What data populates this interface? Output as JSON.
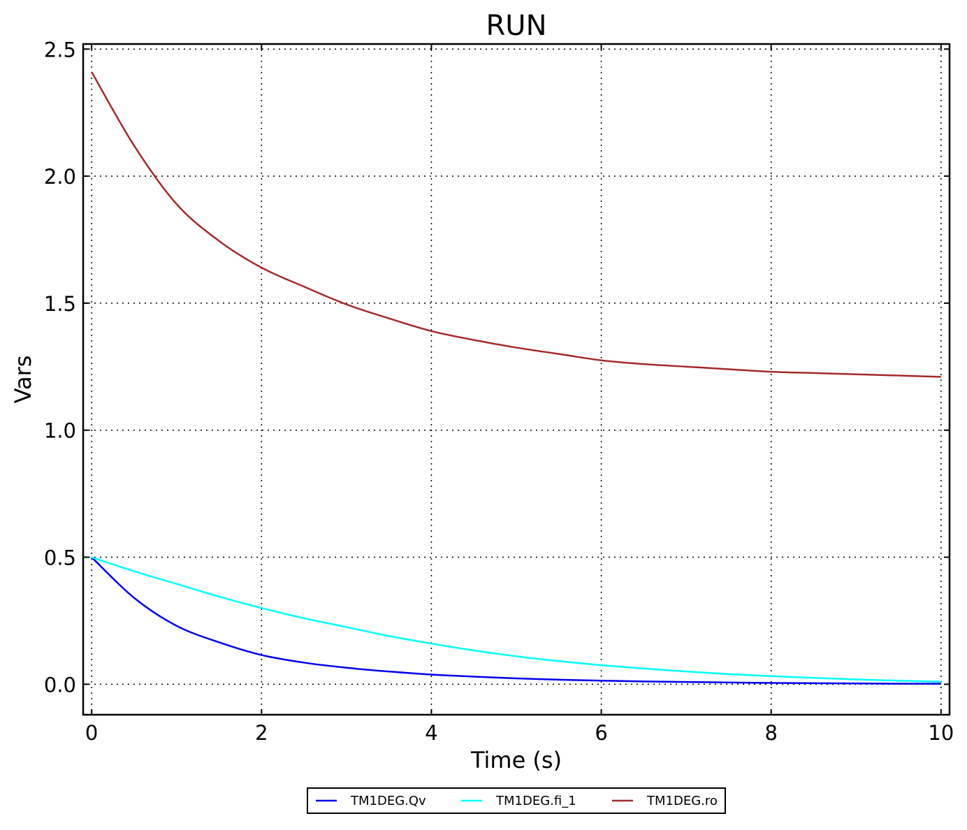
{
  "chart_data": {
    "type": "line",
    "title": "RUN",
    "xlabel": "Time (s)",
    "ylabel": "Vars",
    "xlim": [
      -0.1,
      10.1
    ],
    "ylim": [
      -0.12,
      2.52
    ],
    "xticks": [
      0,
      2,
      4,
      6,
      8,
      10
    ],
    "xtick_labels": [
      "0",
      "2",
      "4",
      "6",
      "8",
      "10"
    ],
    "yticks": [
      0.0,
      0.5,
      1.0,
      1.5,
      2.0,
      2.5
    ],
    "ytick_labels": [
      "0.0",
      "0.5",
      "1.0",
      "1.5",
      "2.0",
      "2.5"
    ],
    "grid": true,
    "legend_position": "bottom-center, below plot",
    "x": [
      0,
      0.5,
      1,
      1.5,
      2,
      2.5,
      3,
      3.5,
      4,
      4.5,
      5,
      5.5,
      6,
      6.5,
      7,
      7.5,
      8,
      8.5,
      9,
      9.5,
      10
    ],
    "series": [
      {
        "name": "TM1DEG.Qv",
        "color": "#0000ee",
        "values": [
          0.5,
          0.34,
          0.23,
          0.165,
          0.115,
          0.085,
          0.065,
          0.05,
          0.038,
          0.03,
          0.023,
          0.018,
          0.014,
          0.011,
          0.009,
          0.007,
          0.005,
          0.004,
          0.003,
          0.002,
          0.002
        ]
      },
      {
        "name": "TM1DEG.fi_1",
        "color": "#00ffff",
        "values": [
          0.5,
          0.445,
          0.395,
          0.345,
          0.3,
          0.26,
          0.225,
          0.19,
          0.16,
          0.133,
          0.11,
          0.091,
          0.075,
          0.062,
          0.05,
          0.04,
          0.032,
          0.025,
          0.019,
          0.014,
          0.01
        ]
      },
      {
        "name": "TM1DEG.ro",
        "color": "#a52a2a",
        "values": [
          2.41,
          2.12,
          1.89,
          1.745,
          1.64,
          1.565,
          1.495,
          1.44,
          1.39,
          1.355,
          1.325,
          1.3,
          1.275,
          1.26,
          1.25,
          1.24,
          1.23,
          1.225,
          1.22,
          1.215,
          1.21
        ]
      }
    ]
  }
}
